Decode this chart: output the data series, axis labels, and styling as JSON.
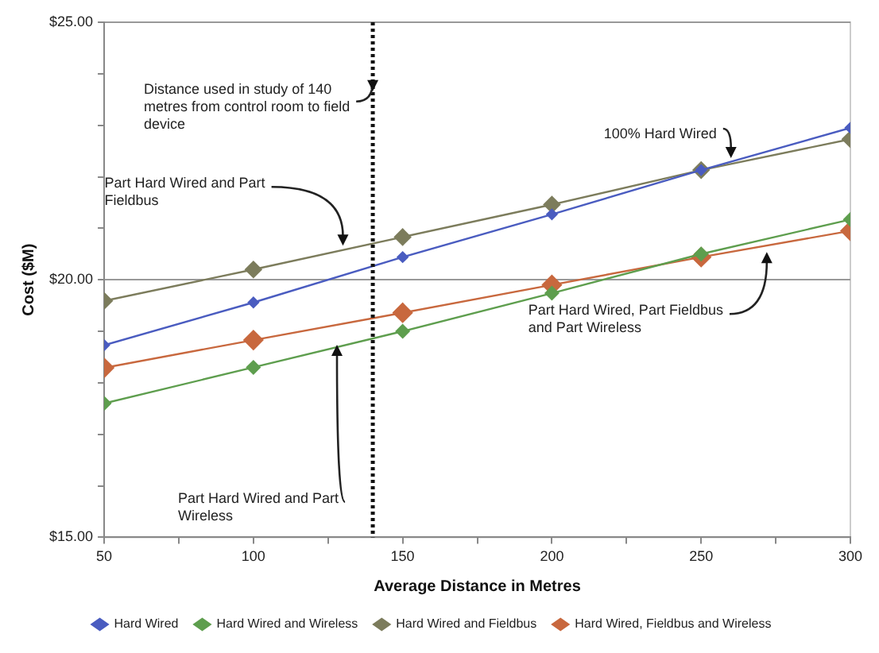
{
  "chart_data": {
    "type": "line",
    "xlabel": "Average Distance in Metres",
    "ylabel": "Cost ($M)",
    "x": [
      50,
      100,
      150,
      200,
      250,
      300
    ],
    "series": [
      {
        "name": "Hard Wired",
        "color": "#4a5cc0",
        "values": [
          18.73,
          19.56,
          20.44,
          21.27,
          22.13,
          22.95
        ]
      },
      {
        "name": "Hard Wired and Wireless",
        "color": "#5e9e4e",
        "values": [
          17.6,
          18.3,
          19.0,
          19.74,
          20.5,
          21.17
        ]
      },
      {
        "name": "Hard Wired and Fieldbus",
        "color": "#7c7c5c",
        "values": [
          19.59,
          20.2,
          20.83,
          21.46,
          22.13,
          22.73
        ]
      },
      {
        "name": "Hard Wired, Fieldbus and Wireless",
        "color": "#c8683e",
        "values": [
          18.29,
          18.83,
          19.36,
          19.9,
          20.44,
          20.95
        ]
      }
    ],
    "xlim": [
      50,
      300
    ],
    "xticks": [
      50,
      {
        "value": 75,
        "label": null
      },
      100,
      {
        "value": 125,
        "label": null
      },
      150,
      {
        "value": 175,
        "label": null
      },
      200,
      {
        "value": 225,
        "label": null
      },
      250,
      {
        "value": 275,
        "label": null
      },
      300
    ],
    "ylim": [
      15,
      25
    ],
    "yticks": [
      {
        "value": 15,
        "label": "$15.00"
      },
      {
        "value": 16,
        "label": null
      },
      {
        "value": 17,
        "label": null
      },
      {
        "value": 18,
        "label": null
      },
      {
        "value": 19,
        "label": null
      },
      {
        "value": 20,
        "label": "$20.00"
      },
      {
        "value": 21,
        "label": null
      },
      {
        "value": 22,
        "label": null
      },
      {
        "value": 23,
        "label": null
      },
      {
        "value": 24,
        "label": null
      },
      {
        "value": 25,
        "label": "$25.00"
      }
    ],
    "grid": "y",
    "legend": "bottom",
    "marker": "diamond",
    "line_style": "solid",
    "ref_lines": [
      {
        "axis": "x",
        "value": 140,
        "label": null,
        "color": "#111111",
        "line_style": "dotted"
      }
    ],
    "annotations": [
      {
        "text": "Distance used in study of 140 metres from control room to field device",
        "x": 140,
        "y": 23.6
      },
      {
        "text": "Part Hard Wired and Part Fieldbus",
        "x": 130,
        "y": 20.6
      },
      {
        "text": "100% Hard Wired",
        "x": 260,
        "y": 22.3
      },
      {
        "text": "Part Hard Wired and Part Wireless",
        "x": 128,
        "y": 18.8
      },
      {
        "text": "Part Hard Wired, Part Fieldbus and Part Wireless",
        "x": 272,
        "y": 20.6
      }
    ]
  }
}
